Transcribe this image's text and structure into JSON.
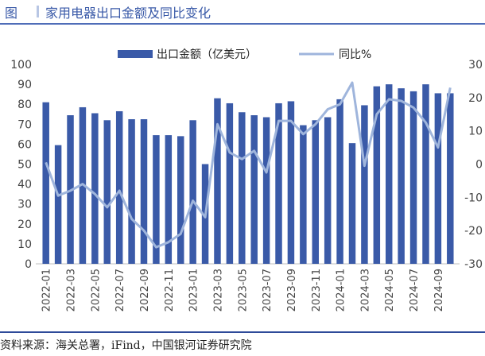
{
  "figure": {
    "label": "图",
    "title": "家用电器出口金额及同比变化",
    "source": "资料来源：海关总署，iFind，中国银河证券研究院"
  },
  "colors": {
    "bars": "#3a5aa8",
    "line": "#9fb5dc",
    "header_text": "#3a5aa8",
    "rules": "#2e4a99"
  },
  "chart_data": {
    "type": "bar",
    "categories": [
      "2022-01",
      "2022-02",
      "2022-03",
      "2022-04",
      "2022-05",
      "2022-06",
      "2022-07",
      "2022-08",
      "2022-09",
      "2022-10",
      "2022-11",
      "2022-12",
      "2023-01",
      "2023-02",
      "2023-03",
      "2023-04",
      "2023-05",
      "2023-06",
      "2023-07",
      "2023-08",
      "2023-09",
      "2023-10",
      "2023-11",
      "2023-12",
      "2024-01",
      "2024-02",
      "2024-03",
      "2024-04",
      "2024-05",
      "2024-06",
      "2024-07",
      "2024-08",
      "2024-09",
      "2024-10"
    ],
    "x_tick_labels": [
      "2022-01",
      "2022-03",
      "2022-05",
      "2022-07",
      "2022-09",
      "2022-11",
      "2023-01",
      "2023-03",
      "2023-05",
      "2023-07",
      "2023-09",
      "2023-11",
      "2024-01",
      "2024-03",
      "2024-05",
      "2024-07",
      "2024-09"
    ],
    "series": [
      {
        "name": "出口金额（亿美元）",
        "type": "bar",
        "axis": "left",
        "values": [
          81,
          59.5,
          74.5,
          78.5,
          75.5,
          72,
          76.5,
          72.5,
          72.5,
          64.5,
          64.5,
          64,
          72,
          50,
          83,
          80.5,
          76,
          74.5,
          73.5,
          80.5,
          81.5,
          69.5,
          72,
          73.5,
          82.5,
          60.5,
          79.5,
          89,
          90,
          88,
          86.5,
          90,
          85.5,
          85.5
        ]
      },
      {
        "name": "同比%",
        "type": "line",
        "axis": "right",
        "values": [
          0.5,
          -9.5,
          -8,
          -6,
          -9,
          -13,
          -8,
          -16.5,
          -20,
          -25,
          -23.5,
          -21,
          -11,
          -16,
          12,
          3.5,
          1.5,
          4,
          -2.5,
          13,
          13,
          9,
          12,
          16.5,
          18,
          24.5,
          -0.5,
          15,
          19.5,
          19,
          17,
          12.5,
          5,
          23
        ]
      }
    ],
    "y_left": {
      "min": 0,
      "max": 100,
      "ticks": [
        0,
        10,
        20,
        30,
        40,
        50,
        60,
        70,
        80,
        90,
        100
      ]
    },
    "y_right": {
      "min": -30,
      "max": 30,
      "ticks": [
        -30,
        -20,
        -10,
        0,
        10,
        20,
        30
      ]
    },
    "legend_position": "top-center",
    "grid": false
  }
}
